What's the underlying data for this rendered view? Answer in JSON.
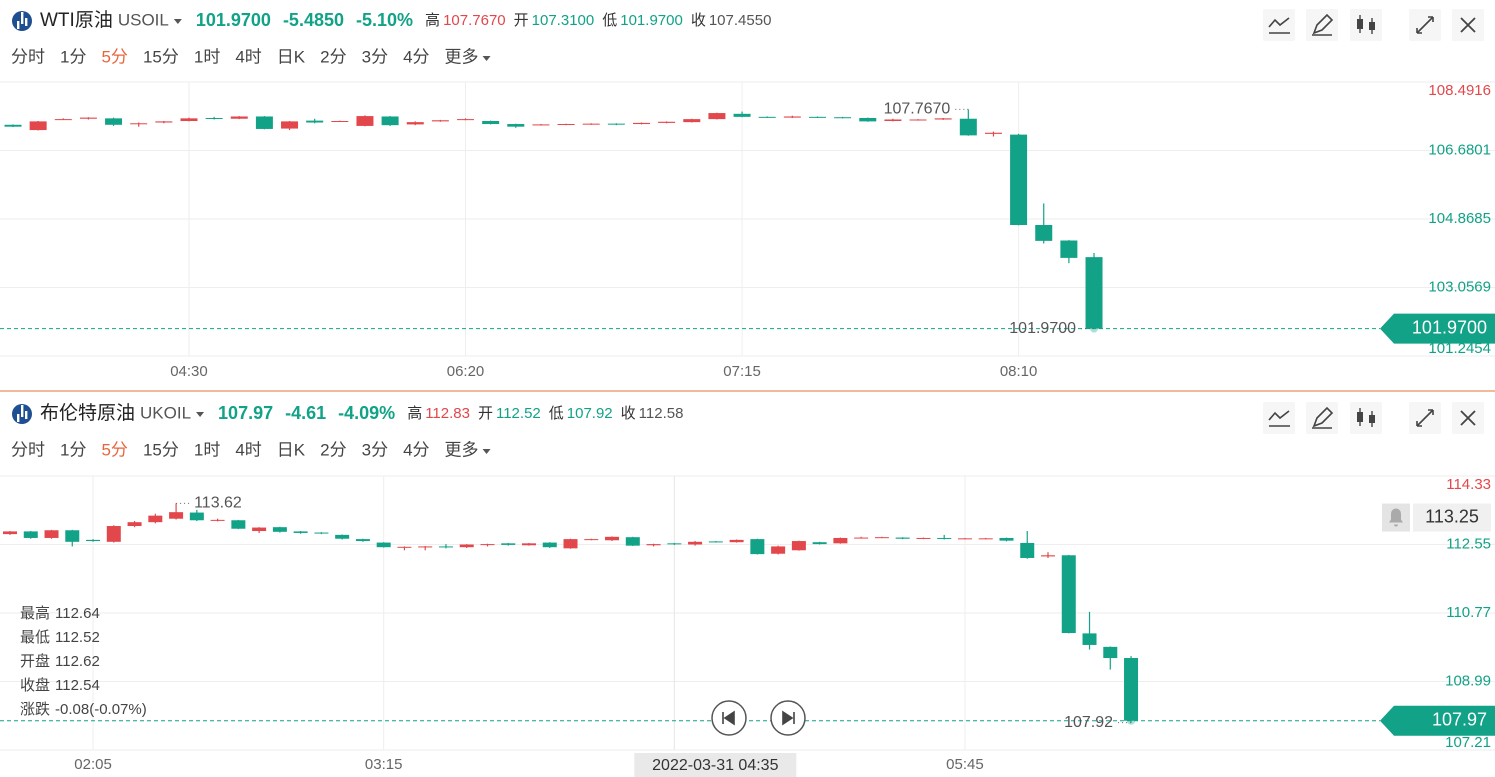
{
  "chart_data": [
    {
      "type": "candlestick",
      "title": "WTI原油",
      "symbol": "USOIL",
      "quote": {
        "price": {
          "value": 101.97,
          "label": "101.9700"
        },
        "change": {
          "value": -5.485,
          "label": "-5.4850"
        },
        "change_pct": {
          "value": -5.1,
          "label": "-5.10%"
        }
      },
      "stats": [
        {
          "name": "高",
          "value": {
            "value": 107.767,
            "label": "107.7670"
          }
        },
        {
          "name": "开",
          "value": {
            "value": 107.31,
            "label": "107.3100"
          }
        },
        {
          "name": "低",
          "value": {
            "value": 101.97,
            "label": "101.9700"
          }
        },
        {
          "name": "收",
          "value": {
            "value": 107.455,
            "label": "107.4550"
          }
        }
      ],
      "tabs": [
        "分时",
        "1分",
        "5分",
        "15分",
        "1时",
        "4时",
        "日K",
        "2分",
        "3分",
        "4分",
        "更多"
      ],
      "active_tab": 2,
      "up_color": "#e2474b",
      "down_color": "#12a287",
      "grid": true,
      "categories": [
        null,
        null,
        null,
        null,
        null,
        null,
        null,
        "04:30",
        null,
        null,
        null,
        null,
        null,
        null,
        null,
        null,
        null,
        null,
        "06:20",
        null,
        null,
        null,
        null,
        null,
        null,
        null,
        null,
        null,
        null,
        "07:15",
        null,
        null,
        null,
        null,
        null,
        null,
        null,
        null,
        null,
        null,
        "08:10",
        null,
        null,
        null
      ],
      "open": [
        107.36,
        107.22,
        107.5,
        107.52,
        107.53,
        107.38,
        107.42,
        107.46,
        107.54,
        107.52,
        107.58,
        107.26,
        107.47,
        107.46,
        107.33,
        107.58,
        107.37,
        107.45,
        107.49,
        107.46,
        107.38,
        107.35,
        107.36,
        107.37,
        107.39,
        107.38,
        107.41,
        107.43,
        107.51,
        107.65,
        107.57,
        107.55,
        107.57,
        107.56,
        107.54,
        107.46,
        107.48,
        107.5,
        107.52,
        107.12,
        107.1,
        104.71,
        104.3,
        103.86
      ],
      "high": [
        107.37,
        107.46,
        107.53,
        107.56,
        107.55,
        107.42,
        107.46,
        107.55,
        107.57,
        107.59,
        107.59,
        107.46,
        107.52,
        107.47,
        107.61,
        107.59,
        107.45,
        107.49,
        107.53,
        107.47,
        107.39,
        107.38,
        107.39,
        107.4,
        107.4,
        107.42,
        107.45,
        107.52,
        107.68,
        107.71,
        107.58,
        107.6,
        107.58,
        107.57,
        107.55,
        107.52,
        107.51,
        107.54,
        107.767,
        107.18,
        107.12,
        105.28,
        104.31,
        103.97
      ],
      "low": [
        107.3,
        107.21,
        107.49,
        107.5,
        107.33,
        107.31,
        107.4,
        107.45,
        107.5,
        107.51,
        107.24,
        107.22,
        107.4,
        107.45,
        107.32,
        107.33,
        107.35,
        107.44,
        107.48,
        107.37,
        107.28,
        107.34,
        107.35,
        107.36,
        107.35,
        107.37,
        107.4,
        107.42,
        107.5,
        107.56,
        107.54,
        107.54,
        107.54,
        107.53,
        107.44,
        107.45,
        107.47,
        107.49,
        107.07,
        107.05,
        104.7,
        104.22,
        103.7,
        101.97
      ],
      "close": [
        107.31,
        107.45,
        107.51,
        107.55,
        107.36,
        107.4,
        107.45,
        107.53,
        107.52,
        107.58,
        107.25,
        107.45,
        107.42,
        107.46,
        107.59,
        107.35,
        107.43,
        107.48,
        107.51,
        107.38,
        107.31,
        107.37,
        107.38,
        107.39,
        107.37,
        107.41,
        107.44,
        107.51,
        107.67,
        107.57,
        107.55,
        107.58,
        107.55,
        107.54,
        107.45,
        107.5,
        107.5,
        107.53,
        107.08,
        107.15,
        104.71,
        104.29,
        103.84,
        101.97
      ],
      "ylim": [
        101.2454,
        108.4916
      ],
      "yticks": [
        108.4916,
        106.6801,
        104.8685,
        103.0569,
        101.2454
      ],
      "high_marker": {
        "value": 107.767,
        "label": "107.7670"
      },
      "low_marker": {
        "value": 101.97,
        "label": "101.9700"
      },
      "last_price": {
        "value": 101.97,
        "label": "101.9700"
      }
    },
    {
      "type": "candlestick",
      "title": "布伦特原油",
      "symbol": "UKOIL",
      "quote": {
        "price": 107.97,
        "change": -4.61,
        "change_pct": {
          "value": -4.09,
          "label": "-4.09%"
        }
      },
      "stats": [
        {
          "name": "高",
          "value": 112.83
        },
        {
          "name": "开",
          "value": 112.52
        },
        {
          "name": "低",
          "value": 107.92
        },
        {
          "name": "收",
          "value": 112.58
        }
      ],
      "tabs": [
        "分时",
        "1分",
        "5分",
        "15分",
        "1时",
        "4时",
        "日K",
        "2分",
        "3分",
        "4分",
        "更多"
      ],
      "active_tab": 2,
      "up_color": "#e2474b",
      "down_color": "#12a287",
      "grid": true,
      "categories": [
        null,
        null,
        null,
        null,
        "02:05",
        null,
        null,
        null,
        null,
        null,
        null,
        null,
        null,
        null,
        null,
        null,
        null,
        null,
        "03:15",
        null,
        null,
        null,
        null,
        null,
        null,
        null,
        null,
        null,
        null,
        null,
        null,
        null,
        null,
        null,
        null,
        null,
        null,
        null,
        null,
        null,
        null,
        null,
        null,
        null,
        null,
        null,
        "05:45",
        null,
        null,
        null,
        null,
        null,
        null,
        null,
        null
      ],
      "open": [
        112.82,
        112.89,
        112.72,
        112.92,
        112.67,
        112.62,
        113.03,
        113.13,
        113.22,
        113.38,
        113.17,
        113.18,
        112.9,
        113.0,
        112.89,
        112.86,
        112.8,
        112.69,
        112.6,
        112.47,
        112.48,
        112.5,
        112.48,
        112.54,
        112.58,
        112.53,
        112.6,
        112.45,
        112.67,
        112.66,
        112.74,
        112.53,
        112.58,
        112.55,
        112.63,
        112.61,
        112.69,
        112.31,
        112.4,
        112.61,
        112.58,
        112.72,
        112.73,
        112.73,
        112.7,
        112.72,
        112.7,
        112.7,
        112.72,
        112.59,
        112.24,
        112.27,
        110.24,
        109.89,
        109.6
      ],
      "high": [
        112.9,
        112.9,
        112.93,
        112.93,
        112.69,
        113.05,
        113.16,
        113.35,
        113.62,
        113.45,
        113.22,
        113.19,
        113.0,
        113.01,
        112.9,
        112.87,
        112.81,
        112.7,
        112.61,
        112.5,
        112.51,
        112.56,
        112.56,
        112.57,
        112.59,
        112.59,
        112.61,
        112.7,
        112.7,
        112.76,
        112.75,
        112.57,
        112.59,
        112.64,
        112.64,
        112.68,
        112.7,
        112.52,
        112.65,
        112.62,
        112.73,
        112.75,
        112.75,
        112.74,
        112.73,
        112.8,
        112.72,
        112.72,
        112.73,
        112.9,
        112.35,
        112.28,
        110.8,
        109.9,
        109.65
      ],
      "low": [
        112.8,
        112.7,
        112.7,
        112.5,
        112.62,
        112.6,
        113.0,
        113.1,
        113.2,
        113.16,
        113.15,
        112.95,
        112.85,
        112.86,
        112.83,
        112.82,
        112.68,
        112.62,
        112.47,
        112.4,
        112.4,
        112.45,
        112.46,
        112.5,
        112.52,
        112.52,
        112.46,
        112.44,
        112.66,
        112.64,
        112.51,
        112.5,
        112.54,
        112.52,
        112.6,
        112.6,
        112.29,
        112.29,
        112.39,
        112.55,
        112.57,
        112.71,
        112.72,
        112.69,
        112.69,
        112.68,
        112.69,
        112.69,
        112.63,
        112.18,
        112.2,
        110.24,
        109.82,
        109.3,
        107.92
      ],
      "close": [
        112.89,
        112.72,
        112.92,
        112.62,
        112.64,
        113.03,
        113.13,
        113.3,
        113.39,
        113.18,
        113.19,
        112.96,
        112.99,
        112.88,
        112.85,
        112.84,
        112.7,
        112.64,
        112.48,
        112.49,
        112.5,
        112.48,
        112.55,
        112.56,
        112.54,
        112.58,
        112.48,
        112.69,
        112.69,
        112.75,
        112.52,
        112.56,
        112.56,
        112.62,
        112.61,
        112.67,
        112.3,
        112.5,
        112.64,
        112.56,
        112.72,
        112.73,
        112.74,
        112.7,
        112.72,
        112.71,
        112.71,
        112.71,
        112.65,
        112.2,
        112.27,
        110.25,
        109.94,
        109.6,
        107.97
      ],
      "ylim": [
        107.21,
        114.33
      ],
      "yticks": [
        114.33,
        112.55,
        110.77,
        108.99,
        107.21
      ],
      "high_marker": 113.62,
      "low_marker": 107.92,
      "last_price": 107.97,
      "alert": 113.25,
      "tooltip": [
        {
          "name": "最高",
          "value": 112.64
        },
        {
          "name": "最低",
          "value": 112.52
        },
        {
          "name": "开盘",
          "value": 112.62
        },
        {
          "name": "收盘",
          "value": 112.54
        },
        {
          "name": "涨跌",
          "value": "-0.08(-0.07%)"
        }
      ],
      "crosshair_label": "2022-03-31 04:35"
    }
  ]
}
